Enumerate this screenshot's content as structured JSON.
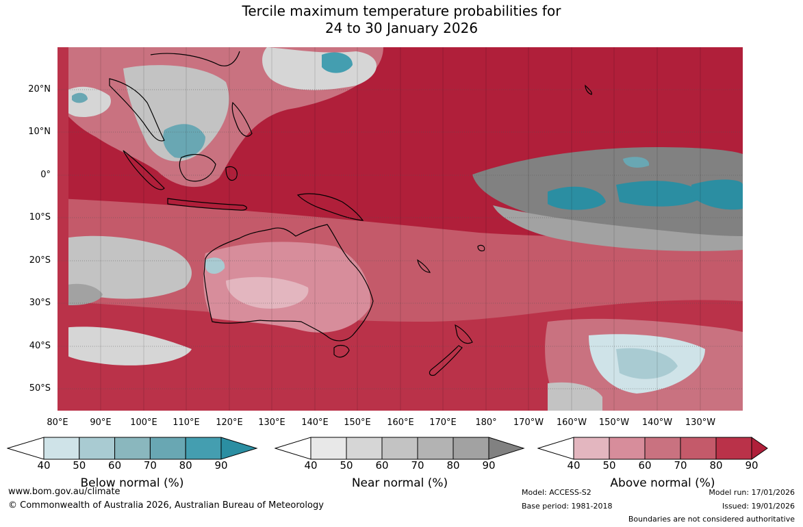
{
  "title": {
    "line1": "Tercile maximum temperature probabilities for",
    "line2": "24 to 30 January 2026"
  },
  "map": {
    "lat_labels": [
      "20°N",
      "10°N",
      "0°",
      "10°S",
      "20°S",
      "30°S",
      "40°S",
      "50°S"
    ],
    "lon_labels": [
      "80°E",
      "90°E",
      "100°E",
      "110°E",
      "120°E",
      "130°E",
      "140°E",
      "150°E",
      "160°E",
      "170°E",
      "180°",
      "170°W",
      "160°W",
      "150°W",
      "140°W",
      "130°W"
    ]
  },
  "legends": [
    {
      "title": "Below normal (%)",
      "ticks": [
        "40",
        "50",
        "60",
        "70",
        "80",
        "90"
      ],
      "colors": [
        "#cfe3e8",
        "#a9cbd2",
        "#8ab7be",
        "#69a7b3",
        "#449eb0",
        "#2b8ea2"
      ]
    },
    {
      "title": "Near normal (%)",
      "ticks": [
        "40",
        "50",
        "60",
        "70",
        "80",
        "90"
      ],
      "colors": [
        "#e8e8e8",
        "#d6d6d6",
        "#c3c3c3",
        "#b3b3b3",
        "#a2a2a2",
        "#818181"
      ]
    },
    {
      "title": "Above normal (%)",
      "ticks": [
        "40",
        "50",
        "60",
        "70",
        "80",
        "90"
      ],
      "colors": [
        "#e3b6bf",
        "#d78d9b",
        "#c97280",
        "#c45a6a",
        "#ba3249",
        "#b01f3a"
      ]
    }
  ],
  "footer": {
    "url": "www.bom.gov.au/climate",
    "copyright": "© Commonwealth of Australia 2026, Australian Bureau of Meteorology",
    "model": "Model: ACCESS-S2",
    "base_period": "Base period: 1981-2018",
    "model_run": "Model run: 17/01/2026",
    "issued": "Issued: 19/01/2026",
    "boundaries_note": "Boundaries are not considered authoritative"
  }
}
